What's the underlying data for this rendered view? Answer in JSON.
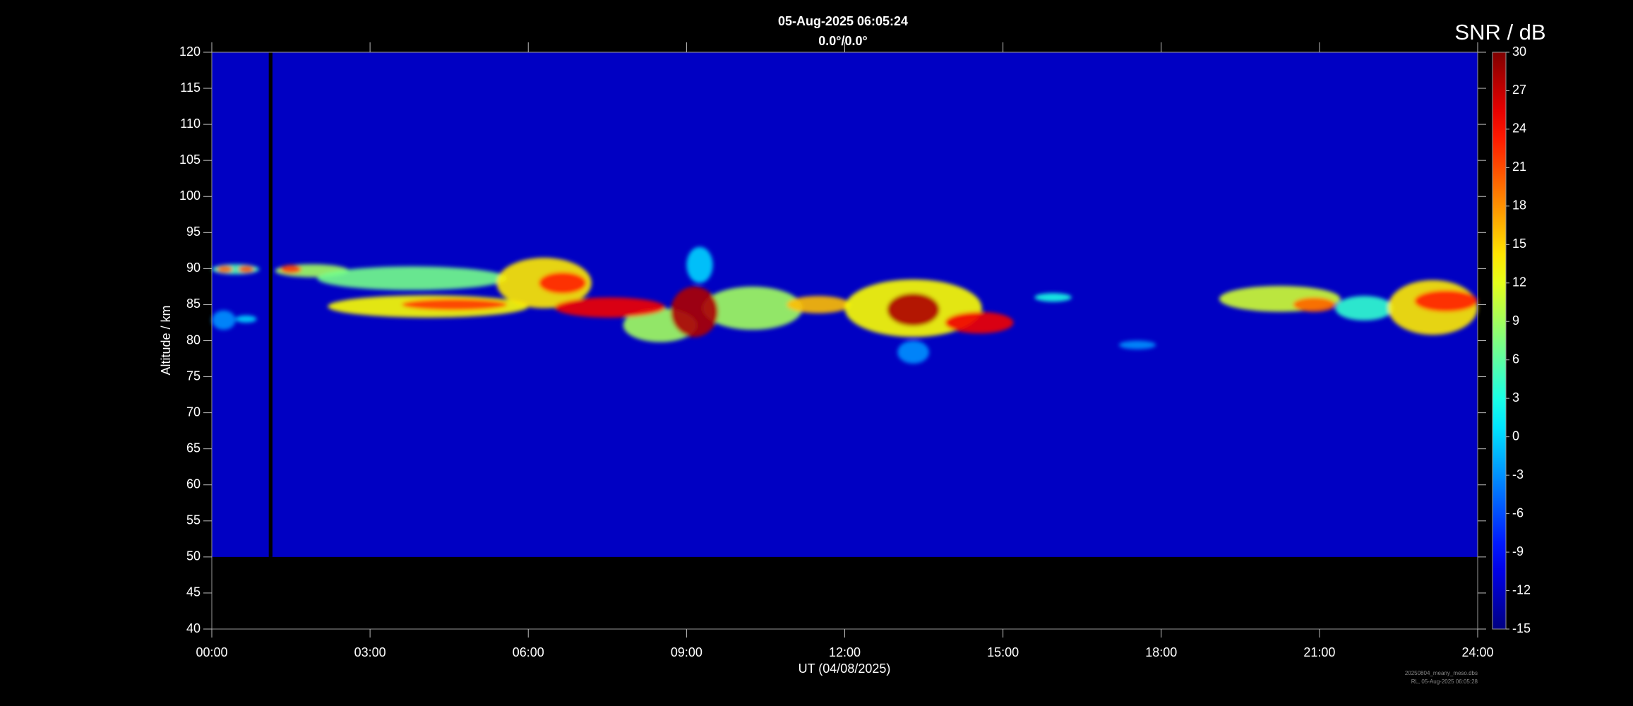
{
  "chart_data": {
    "type": "heatmap",
    "title": "05-Aug-2025 06:05:24",
    "subtitle": "0.0°/0.0°",
    "x_label": "UT (04/08/2025)",
    "y_label": "Altitude / km",
    "colorbar_label": "SNR / dB",
    "colormap": "jet",
    "footer": [
      "20250804_meany_meso.dbs",
      "RL, 05-Aug-2025 06:05:28"
    ],
    "xlim": [
      0,
      24
    ],
    "xticks": [
      {
        "value": 0,
        "label": "00:00"
      },
      {
        "value": 3,
        "label": "03:00"
      },
      {
        "value": 6,
        "label": "06:00"
      },
      {
        "value": 9,
        "label": "09:00"
      },
      {
        "value": 12,
        "label": "12:00"
      },
      {
        "value": 15,
        "label": "15:00"
      },
      {
        "value": 18,
        "label": "18:00"
      },
      {
        "value": 21,
        "label": "21:00"
      },
      {
        "value": 24,
        "label": "24:00"
      }
    ],
    "ylim": [
      40,
      120
    ],
    "yticks": [
      40,
      45,
      50,
      55,
      60,
      65,
      70,
      75,
      80,
      85,
      90,
      95,
      100,
      105,
      110,
      115,
      120
    ],
    "clim": [
      -15,
      30
    ],
    "cticks": [
      -15,
      -12,
      -9,
      -6,
      -3,
      0,
      3,
      6,
      9,
      12,
      15,
      18,
      21,
      24,
      27,
      30
    ],
    "coverage": {
      "x": [
        0,
        24
      ],
      "y": [
        50,
        120
      ],
      "value": -12
    },
    "gap_x": [
      1.08,
      1.15
    ],
    "echoes": [
      {
        "x": [
          0,
          0.9
        ],
        "y": [
          89.2,
          90.6
        ],
        "value": 5
      },
      {
        "x": [
          0,
          0.45
        ],
        "y": [
          81.5,
          84.2
        ],
        "value": -3
      },
      {
        "x": [
          0.45,
          0.85
        ],
        "y": [
          82.5,
          83.5
        ],
        "value": 0
      },
      {
        "x": [
          1.2,
          2.6
        ],
        "y": [
          88.8,
          90.6
        ],
        "value": 9
      },
      {
        "x": [
          2.0,
          5.6
        ],
        "y": [
          87,
          90.3
        ],
        "value": 7
      },
      {
        "x": [
          2.2,
          6.0
        ],
        "y": [
          83.2,
          86.3
        ],
        "value": 13
      },
      {
        "x": [
          5.4,
          7.2
        ],
        "y": [
          84.5,
          91.5
        ],
        "value": 14
      },
      {
        "x": [
          7.8,
          9.2
        ],
        "y": [
          79.8,
          84.5
        ],
        "value": 9
      },
      {
        "x": [
          9.0,
          9.5
        ],
        "y": [
          88,
          93
        ],
        "value": 0
      },
      {
        "x": [
          9.3,
          11.2
        ],
        "y": [
          81.5,
          87.5
        ],
        "value": 9
      },
      {
        "x": [
          10.9,
          12.1
        ],
        "y": [
          83.8,
          86.2
        ],
        "value": 16
      },
      {
        "x": [
          12.0,
          14.6
        ],
        "y": [
          80.5,
          88.5
        ],
        "value": 13
      },
      {
        "x": [
          13.0,
          13.6
        ],
        "y": [
          76.8,
          80
        ],
        "value": -3
      },
      {
        "x": [
          15.6,
          16.3
        ],
        "y": [
          85.4,
          86.6
        ],
        "value": 3
      },
      {
        "x": [
          17.2,
          17.9
        ],
        "y": [
          78.8,
          80
        ],
        "value": -3
      },
      {
        "x": [
          19.1,
          21.4
        ],
        "y": [
          84,
          87.6
        ],
        "value": 11
      },
      {
        "x": [
          21.3,
          22.4
        ],
        "y": [
          82.8,
          86.2
        ],
        "value": 4
      },
      {
        "x": [
          22.3,
          24.0
        ],
        "y": [
          80.8,
          88.4
        ],
        "value": 14
      },
      {
        "x": [
          0.1,
          0.4
        ],
        "y": [
          89.4,
          90.4
        ],
        "value": 20
      },
      {
        "x": [
          0.5,
          0.8
        ],
        "y": [
          89.4,
          90.4
        ],
        "value": 21
      },
      {
        "x": [
          1.3,
          1.7
        ],
        "y": [
          89.3,
          90.5
        ],
        "value": 22
      },
      {
        "x": [
          3.6,
          5.6
        ],
        "y": [
          84.2,
          85.8
        ],
        "value": 22
      },
      {
        "x": [
          6.2,
          7.1
        ],
        "y": [
          86.5,
          89.5
        ],
        "value": 23
      },
      {
        "x": [
          6.5,
          8.6
        ],
        "y": [
          83.2,
          86.0
        ],
        "value": 25
      },
      {
        "x": [
          8.7,
          9.6
        ],
        "y": [
          80.5,
          87.5
        ],
        "value": 28
      },
      {
        "x": [
          12.8,
          13.8
        ],
        "y": [
          82.0,
          86.6
        ],
        "value": 28
      },
      {
        "x": [
          13.9,
          15.2
        ],
        "y": [
          81.0,
          84.0
        ],
        "value": 25
      },
      {
        "x": [
          20.5,
          21.3
        ],
        "y": [
          84.0,
          86.0
        ],
        "value": 20
      },
      {
        "x": [
          22.8,
          24.0
        ],
        "y": [
          84.0,
          87.0
        ],
        "value": 23
      }
    ]
  }
}
